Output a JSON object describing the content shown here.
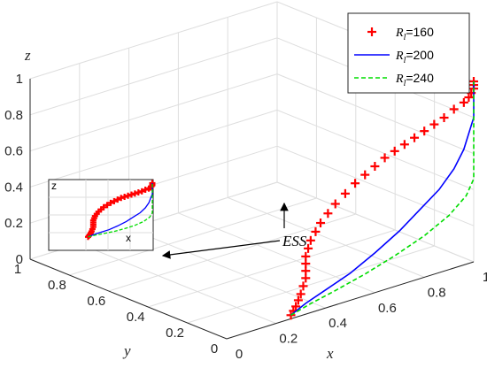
{
  "chart_data": {
    "type": "line",
    "view": "3d",
    "xlabel": "x",
    "ylabel": "y",
    "zlabel": "z",
    "xticks": [
      "0",
      "0.2",
      "0.4",
      "0.6",
      "0.8",
      "1"
    ],
    "yticks": [
      "0",
      "0.2",
      "0.4",
      "0.6",
      "0.8",
      "1"
    ],
    "zticks": [
      "0",
      "0.2",
      "0.4",
      "0.6",
      "0.8",
      "1"
    ],
    "xlim": [
      0,
      1
    ],
    "ylim": [
      0,
      1
    ],
    "zlim": [
      0,
      1
    ],
    "grid": true,
    "legend_position": "top-right",
    "series": [
      {
        "name": "R_l=160",
        "legend_symbol": "R",
        "legend_sub": "l",
        "legend_value": "=160",
        "style": "markers",
        "marker": "+",
        "color": "#ff0000",
        "points": [
          [
            0.26,
            0.0,
            0.02
          ],
          [
            0.27,
            0.0,
            0.04
          ],
          [
            0.28,
            0.0,
            0.06
          ],
          [
            0.29,
            0.0,
            0.09
          ],
          [
            0.3,
            0.0,
            0.12
          ],
          [
            0.31,
            0.0,
            0.16
          ],
          [
            0.32,
            0.0,
            0.2
          ],
          [
            0.32,
            0.0,
            0.24
          ],
          [
            0.32,
            0.0,
            0.28
          ],
          [
            0.32,
            0.0,
            0.32
          ],
          [
            0.33,
            0.0,
            0.36
          ],
          [
            0.34,
            0.0,
            0.4
          ],
          [
            0.36,
            0.0,
            0.44
          ],
          [
            0.38,
            0.0,
            0.48
          ],
          [
            0.41,
            0.0,
            0.52
          ],
          [
            0.44,
            0.0,
            0.56
          ],
          [
            0.48,
            0.0,
            0.6
          ],
          [
            0.52,
            0.0,
            0.64
          ],
          [
            0.56,
            0.0,
            0.67
          ],
          [
            0.6,
            0.0,
            0.7
          ],
          [
            0.64,
            0.0,
            0.73
          ],
          [
            0.68,
            0.0,
            0.75
          ],
          [
            0.72,
            0.0,
            0.77
          ],
          [
            0.76,
            0.0,
            0.79
          ],
          [
            0.8,
            0.0,
            0.81
          ],
          [
            0.84,
            0.0,
            0.83
          ],
          [
            0.88,
            0.0,
            0.85
          ],
          [
            0.92,
            0.0,
            0.88
          ],
          [
            0.96,
            0.0,
            0.9
          ],
          [
            0.98,
            0.0,
            0.92
          ],
          [
            0.99,
            0.0,
            0.94
          ],
          [
            1.0,
            0.0,
            0.96
          ],
          [
            1.0,
            0.0,
            0.98
          ],
          [
            1.0,
            0.0,
            1.0
          ]
        ]
      },
      {
        "name": "R_l=200",
        "legend_symbol": "R",
        "legend_sub": "l",
        "legend_value": "=200",
        "style": "solid",
        "color": "#0000ff",
        "points": [
          [
            0.26,
            0.0,
            0.02
          ],
          [
            0.32,
            0.0,
            0.06
          ],
          [
            0.4,
            0.0,
            0.1
          ],
          [
            0.5,
            0.0,
            0.15
          ],
          [
            0.6,
            0.0,
            0.22
          ],
          [
            0.7,
            0.0,
            0.3
          ],
          [
            0.78,
            0.0,
            0.38
          ],
          [
            0.86,
            0.0,
            0.46
          ],
          [
            0.92,
            0.0,
            0.55
          ],
          [
            0.96,
            0.0,
            0.64
          ],
          [
            0.98,
            0.0,
            0.72
          ],
          [
            1.0,
            0.0,
            0.8
          ],
          [
            1.0,
            0.0,
            0.88
          ],
          [
            1.0,
            0.0,
            0.95
          ],
          [
            1.0,
            0.0,
            1.0
          ]
        ]
      },
      {
        "name": "R_l=240",
        "legend_symbol": "R",
        "legend_sub": "l",
        "legend_value": "=240",
        "style": "dashed",
        "color": "#00dd00",
        "points": [
          [
            0.26,
            0.0,
            0.02
          ],
          [
            0.34,
            0.0,
            0.05
          ],
          [
            0.44,
            0.0,
            0.08
          ],
          [
            0.56,
            0.0,
            0.12
          ],
          [
            0.68,
            0.0,
            0.17
          ],
          [
            0.8,
            0.0,
            0.23
          ],
          [
            0.9,
            0.0,
            0.3
          ],
          [
            0.97,
            0.0,
            0.38
          ],
          [
            1.0,
            0.0,
            0.46
          ],
          [
            1.0,
            0.0,
            0.56
          ],
          [
            1.0,
            0.0,
            0.66
          ],
          [
            1.0,
            0.0,
            0.76
          ],
          [
            1.0,
            0.0,
            0.86
          ],
          [
            1.0,
            0.0,
            0.94
          ],
          [
            1.0,
            0.0,
            1.0
          ]
        ]
      }
    ],
    "annotation": "ESS",
    "inset": {
      "xlabel": "x",
      "zlabel": "z"
    }
  }
}
